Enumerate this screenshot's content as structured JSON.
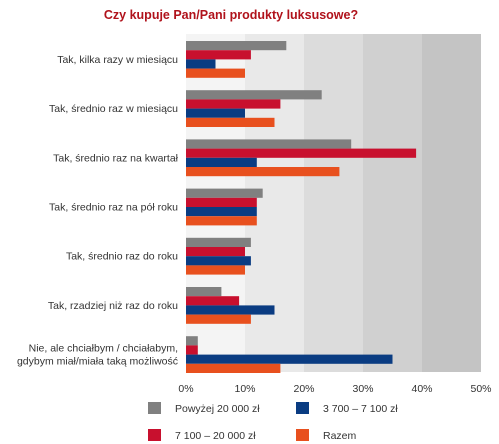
{
  "chart_data": {
    "type": "bar",
    "orientation": "horizontal",
    "title": "Czy kupuje Pan/Pani produkty luksusowe?",
    "xlabel": "",
    "ylabel": "",
    "xlim": [
      0,
      50
    ],
    "x_ticks": [
      "0%",
      "10%",
      "20%",
      "30%",
      "40%",
      "50%"
    ],
    "grid": "alternating vertical bands",
    "legend_position": "bottom",
    "categories": [
      [
        "Tak, kilka razy w miesiącu"
      ],
      [
        "Tak, średnio raz w miesiącu"
      ],
      [
        "Tak, średnio raz na kwartał"
      ],
      [
        "Tak, średnio raz na pół roku"
      ],
      [
        "Tak, średnio raz do roku"
      ],
      [
        "Tak, rzadziej niż raz do roku"
      ],
      [
        "Nie, ale chciałbym / chciałabym,",
        "gdybym miał/miała taką możliwość"
      ]
    ],
    "series": [
      {
        "name": "Powyżej 20 000 zł",
        "color": "#808080",
        "values": [
          17,
          23,
          28,
          13,
          11,
          6,
          2
        ]
      },
      {
        "name": "7 100 – 20 000 zł",
        "color": "#c8102e",
        "values": [
          11,
          16,
          39,
          12,
          10,
          9,
          2
        ]
      },
      {
        "name": "3 700 – 7 100 zł",
        "color": "#0a3c82",
        "values": [
          5,
          10,
          12,
          12,
          11,
          15,
          35
        ]
      },
      {
        "name": "Razem",
        "color": "#e8501e",
        "values": [
          10,
          15,
          26,
          12,
          10,
          11,
          16
        ]
      }
    ]
  },
  "legend_layout": [
    [
      "Powyżej 20 000 zł",
      "3 700 – 7 100 zł"
    ],
    [
      "7 100 – 20 000 zł",
      "Razem"
    ]
  ]
}
